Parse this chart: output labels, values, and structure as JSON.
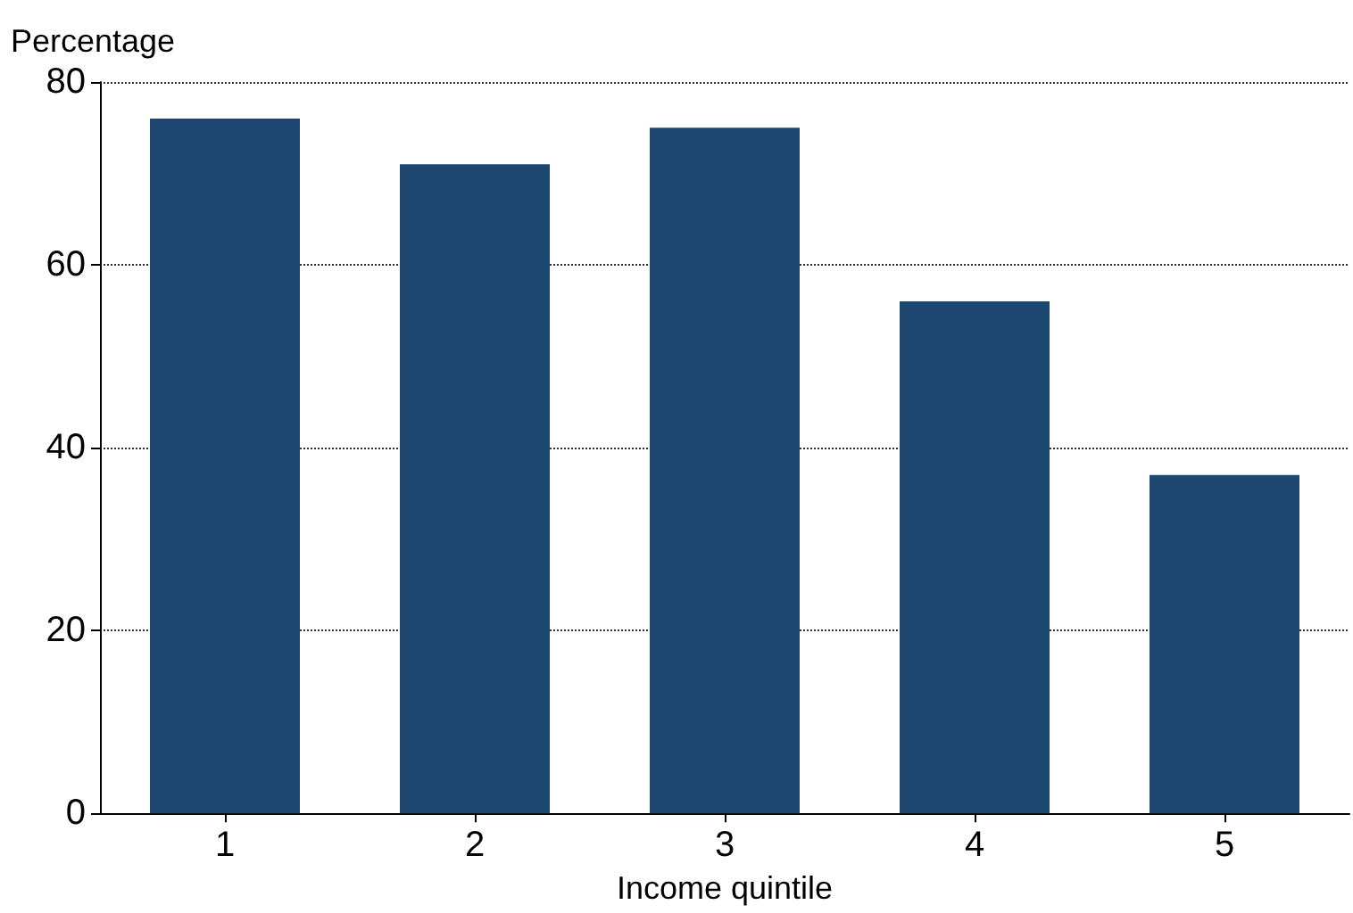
{
  "chart_data": {
    "type": "bar",
    "xlabel": "Income quintile",
    "ylabel": "Percentage",
    "categories": [
      "1",
      "2",
      "3",
      "4",
      "5"
    ],
    "values": [
      76,
      71,
      75,
      56,
      37
    ],
    "color": "#1d4770",
    "ylim": [
      0,
      80
    ],
    "yticks": [
      0,
      20,
      40,
      60,
      80
    ],
    "grid": "y"
  }
}
